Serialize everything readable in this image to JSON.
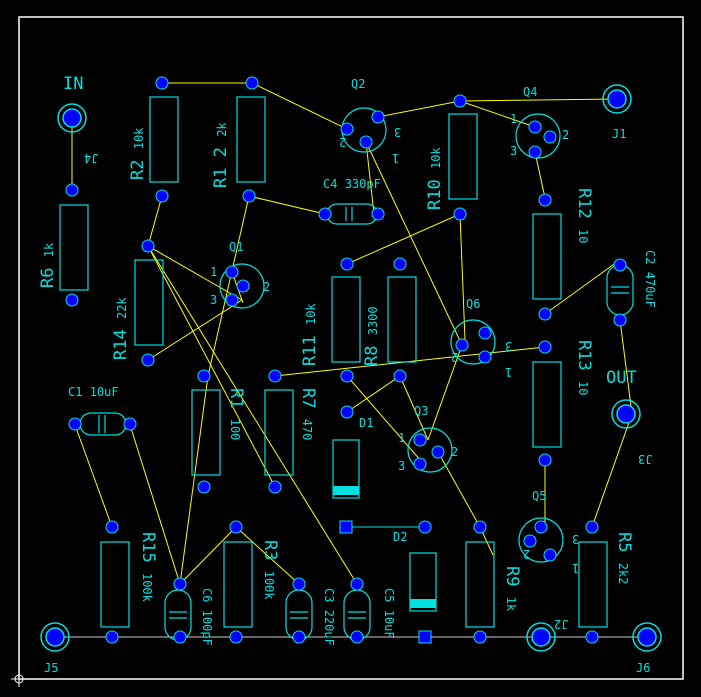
{
  "board": {
    "outline_color": "#ffffff",
    "trace_color": "#ffff00",
    "silk_color": "#00e0e0",
    "pad_color": "#0000ff",
    "diode_band_color": "#00e0e0"
  },
  "labels": {
    "in": "IN",
    "out": "OUT",
    "j1": "J1",
    "j2": "J2",
    "j3": "J3",
    "j4": "J4",
    "j5": "J5",
    "j6": "J6",
    "q1": "Q1",
    "q2": "Q2",
    "q3": "Q3",
    "q4": "Q4",
    "q5": "Q5",
    "q6": "Q6",
    "d1": "D1",
    "d2": "D2",
    "c1": "C1",
    "c1_val": "10uF",
    "c2": "C2",
    "c2_val": "470uF",
    "c3": "C3",
    "c3_val": "220uF",
    "c4": "C4",
    "c4_val": "330pF",
    "c5": "C5",
    "c5_val": "10uF",
    "c6": "C6",
    "c6_val": "100pF",
    "r1": "R1",
    "r1_val": "100",
    "r2": "R2",
    "r2_val": "10k",
    "r3": "R3",
    "r3_val": "100k",
    "r5": "R5",
    "r5_val": "2k2",
    "r6": "R6",
    "r6_val": "1k",
    "r7": "R7",
    "r7_val": "470",
    "r8": "R8",
    "r8_val": "3300",
    "r9": "R9",
    "r9_val": "1k",
    "r10": "R10",
    "r10_val": "10k",
    "r11": "R11",
    "r11_val": "10k",
    "r12": "R12",
    "r12_val": "10",
    "r13": "R13",
    "r13_val": "10",
    "r14": "R14",
    "r14_val": "22k",
    "r15": "R15",
    "r15_val": "100k",
    "r16": "R16",
    "r16_val": "2.2k",
    "pin1": "1",
    "pin2": "2",
    "pin3": "3"
  }
}
